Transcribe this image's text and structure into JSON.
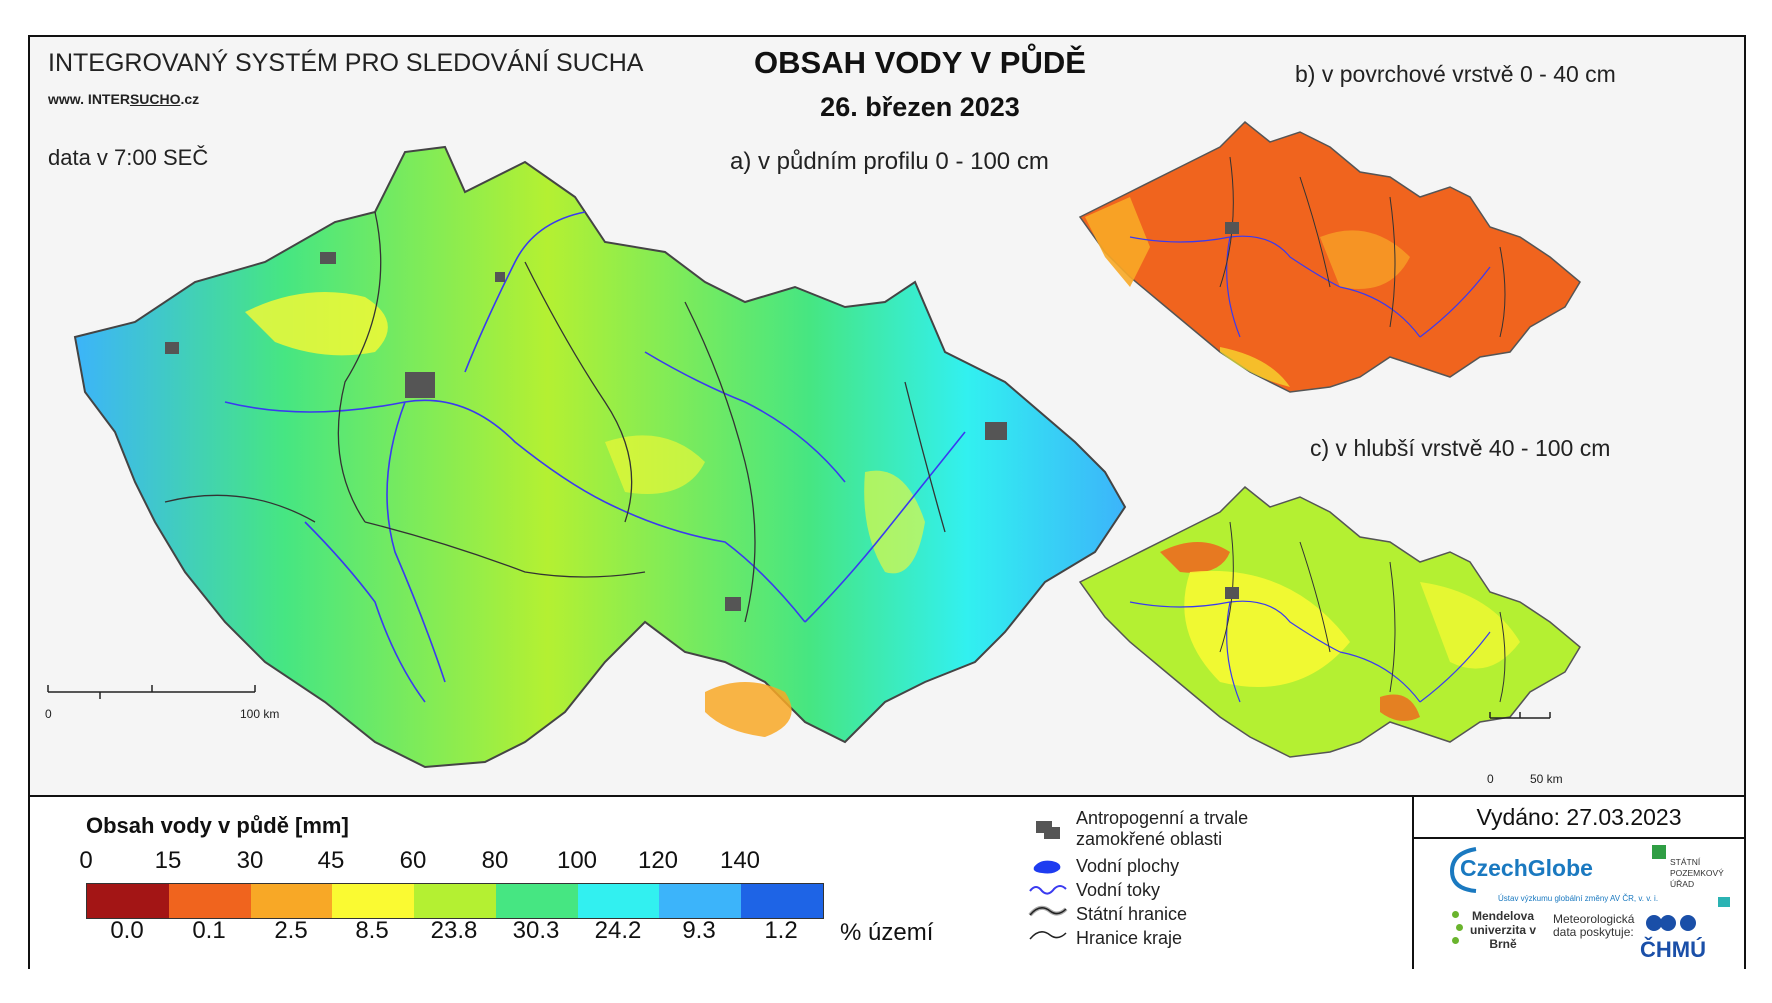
{
  "header": {
    "system_title": "INTEGROVANÝ SYSTÉM PRO SLEDOVÁNÍ SUCHA",
    "website_prefix": "www. INTER",
    "website_underlined": "SUCHO",
    "website_suffix": ".cz",
    "data_time": "data v 7:00 SEČ",
    "main_title": "OBSAH VODY V PŮDĚ",
    "date": "26. březen 2023"
  },
  "maps": {
    "a_label": "a) v půdním profilu 0 - 100 cm",
    "b_label": "b) v povrchové vrstvě 0 - 40 cm",
    "c_label": "c) v hlubší vrstvě 40 - 100 cm",
    "scale_main": {
      "start": "0",
      "end": "100 km"
    },
    "scale_small": {
      "start": "0",
      "end": "50 km"
    }
  },
  "legend": {
    "title": "Obsah vody v půdě  [mm]",
    "ticks": [
      "0",
      "15",
      "30",
      "45",
      "60",
      "80",
      "100",
      "120",
      "140"
    ],
    "colors": [
      "#a31515",
      "#f0641e",
      "#f8a826",
      "#fafa32",
      "#b4f032",
      "#46e682",
      "#32f0f0",
      "#3cb4fa",
      "#1e64e6"
    ],
    "percentages": [
      "0.0",
      "0.1",
      "2.5",
      "8.5",
      "23.8",
      "30.3",
      "24.2",
      "9.3",
      "1.2"
    ],
    "percent_unit": "% území"
  },
  "symbols": {
    "urban": "Antropogenní a trvale zamokřené oblasti",
    "water_bodies": "Vodní plochy",
    "rivers": "Vodní toky",
    "state_border": "Státní hranice",
    "region_border": "Hranice kraje"
  },
  "footer": {
    "issued": "Vydáno: 27.03.2023",
    "czechglobe": "CzechGlobe",
    "czechglobe_sub": "Ústav výzkumu globální změny AV ČR, v. v. i.",
    "spu": "STÁTNÍ POZEMKOVÝ ÚŘAD",
    "mendel": "Mendelova univerzita v Brně",
    "met_data": "Meteorologická data poskytuje:",
    "chmu": "ČHMÚ"
  }
}
